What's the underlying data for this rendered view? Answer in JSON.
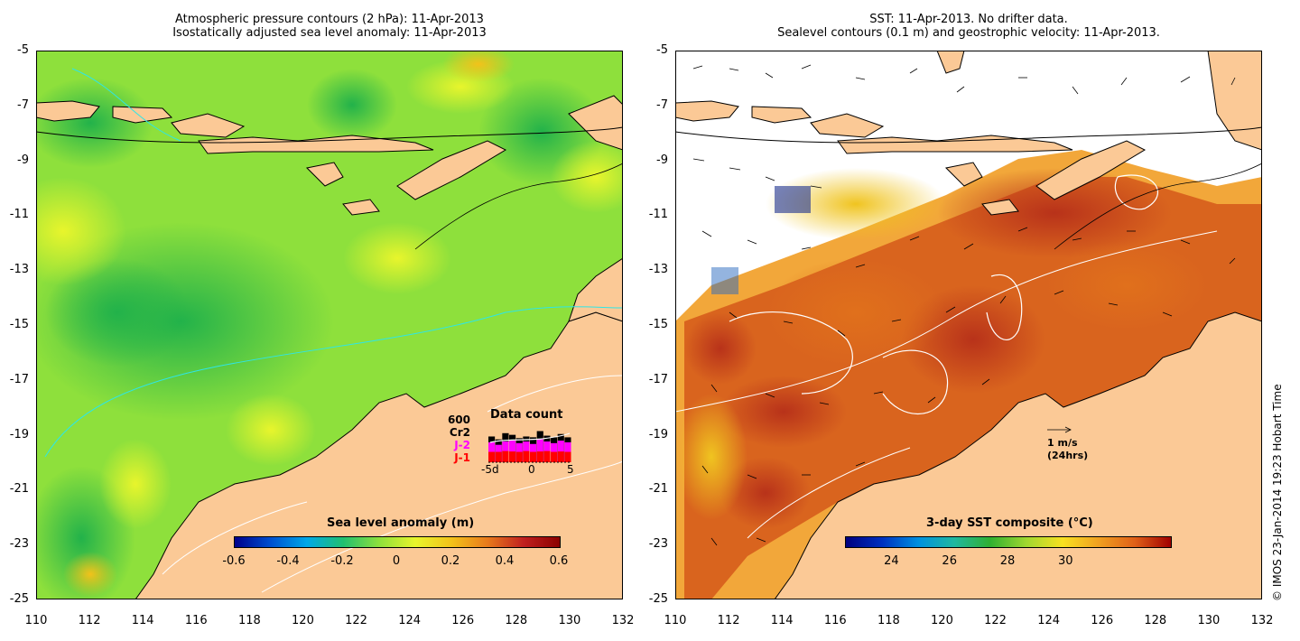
{
  "left_panel": {
    "title_line1": "Atmospheric pressure contours (2 hPa): 11-Apr-2013",
    "title_line2": "Isostatically adjusted sea level anomaly: 11-Apr-2013",
    "colorbar": {
      "label": "Sea level anomaly (m)",
      "ticks": [
        "-0.6",
        "-0.4",
        "-0.2",
        "0",
        "0.2",
        "0.4",
        "0.6"
      ]
    },
    "data_count": {
      "title": "Data count",
      "max_label": "600",
      "series": [
        {
          "name": "Cr2",
          "color": "#000000"
        },
        {
          "name": "J-2",
          "color": "#ff00ff"
        },
        {
          "name": "J-1",
          "color": "#ff0000"
        }
      ],
      "x_ticks": [
        "-5d",
        "0",
        "5"
      ]
    }
  },
  "right_panel": {
    "title_line1": "SST: 11-Apr-2013. No drifter data.",
    "title_line2": "Sealevel contours (0.1 m) and geostrophic velocity: 11-Apr-2013.",
    "colorbar": {
      "label": "3-day SST composite (°C)",
      "ticks": [
        "24",
        "26",
        "28",
        "30"
      ]
    },
    "scale_arrow": {
      "line1": "1 m/s",
      "line2": "(24hrs)"
    }
  },
  "axes": {
    "y_ticks": [
      "-5",
      "-7",
      "-9",
      "-11",
      "-13",
      "-15",
      "-17",
      "-19",
      "-21",
      "-23",
      "-25"
    ],
    "x_ticks": [
      "110",
      "112",
      "114",
      "116",
      "118",
      "120",
      "122",
      "124",
      "126",
      "128",
      "130",
      "132"
    ],
    "lon_range": [
      110,
      132
    ],
    "lat_range": [
      -25,
      -5
    ]
  },
  "copyright": "© IMOS 23-Jan-2014 19:23 Hobart Time",
  "colors": {
    "land": "#fbc996",
    "sla_low": "#00008b",
    "sla_high": "#b22222",
    "sst_low": "#00007f",
    "sst_high": "#a00000"
  }
}
